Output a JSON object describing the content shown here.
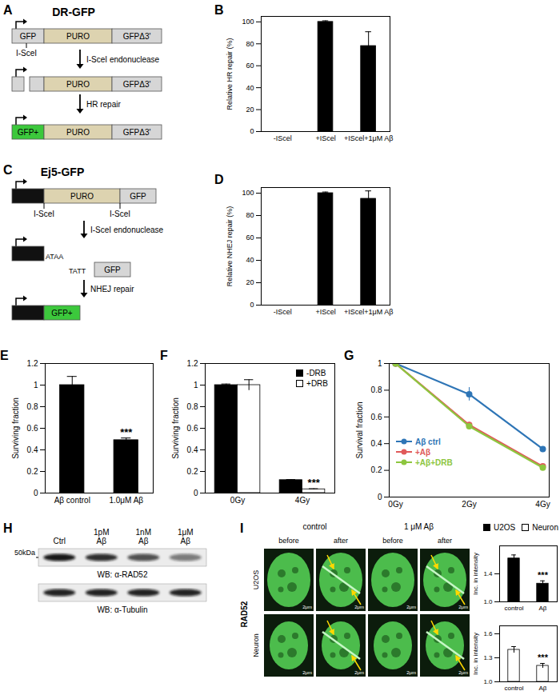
{
  "chart_data": [
    {
      "panel_label": "B",
      "type": "bar",
      "categories": [
        "-IScel",
        "+IScel",
        "+IScel+1μM Aβ"
      ],
      "values": [
        0,
        100,
        78
      ],
      "errors": [
        0,
        1,
        13
      ],
      "color": "#000000",
      "ylabel": "Relative HR repair (%)",
      "ylim": [
        0,
        105
      ],
      "yticks": [
        0,
        20,
        40,
        60,
        80,
        100
      ]
    },
    {
      "panel_label": "D",
      "type": "bar",
      "categories": [
        "-IScel",
        "+IScel",
        "+IScel+1μM Aβ"
      ],
      "values": [
        0,
        100,
        95
      ],
      "errors": [
        0,
        1,
        7
      ],
      "color": "#000000",
      "ylabel": "Relative NHEJ repair (%)",
      "ylim": [
        0,
        105
      ],
      "yticks": [
        0,
        20,
        40,
        60,
        80,
        100
      ]
    },
    {
      "panel_label": "E",
      "type": "bar",
      "categories": [
        "Aβ control",
        "1.0μM Aβ"
      ],
      "values": [
        1,
        0.49
      ],
      "errors": [
        0.08,
        0.02
      ],
      "color": "#000000",
      "ylabel": "Surviving fraction",
      "ylim": [
        0,
        1.2
      ],
      "yticks": [
        0,
        0.2,
        0.4,
        0.6,
        0.8,
        1,
        1.2
      ],
      "annotations": [
        {
          "text": "***",
          "category": "1.0μM Aβ"
        }
      ]
    },
    {
      "panel_label": "F",
      "type": "bar",
      "categories": [
        "0Gy",
        "4Gy"
      ],
      "series": [
        {
          "name": "-DRB",
          "color": "#000000",
          "values": [
            1,
            0.12
          ],
          "errors": [
            0.01,
            0.005
          ]
        },
        {
          "name": "+DRB",
          "color": "#ffffff",
          "values": [
            1,
            0.035
          ],
          "errors": [
            0.05,
            0.005
          ]
        }
      ],
      "ylabel": "Surviving fraction",
      "ylim": [
        0,
        1.2
      ],
      "yticks": [
        0,
        0.2,
        0.4,
        0.6,
        0.8,
        1,
        1.2
      ],
      "legend": "top-right",
      "annotations": [
        {
          "text": "***",
          "category": "4Gy",
          "series": "+DRB"
        }
      ]
    },
    {
      "panel_label": "G",
      "type": "line",
      "categories": [
        "0Gy",
        "2Gy",
        "4Gy"
      ],
      "series": [
        {
          "name": "Aβ ctrl",
          "color": "#2e75b6",
          "values": [
            1,
            0.77,
            0.36
          ],
          "errors": [
            0,
            0.05,
            0.01
          ]
        },
        {
          "name": "+Aβ",
          "color": "#e05a5a",
          "values": [
            1,
            0.54,
            0.23
          ],
          "errors": [
            0,
            0.02,
            0.01
          ]
        },
        {
          "name": "+Aβ+DRB",
          "color": "#8dc63f",
          "values": [
            1,
            0.53,
            0.22
          ],
          "errors": [
            0,
            0.02,
            0.01
          ]
        }
      ],
      "ylabel": "Survival fraction",
      "ylim": [
        0,
        1
      ],
      "yticks": [
        0,
        0.2,
        0.4,
        0.6,
        0.8,
        1
      ],
      "legend": "left",
      "marker": "circle"
    },
    {
      "type": "bar",
      "categories": [
        "control",
        "Aβ"
      ],
      "series": [
        {
          "name": "U2OS",
          "color": "#000000",
          "values": [
            1.62,
            1.26
          ],
          "errors": [
            0.05,
            0.04
          ]
        }
      ],
      "ylabel": "Inc. in intensity",
      "ylim": [
        1,
        1.8
      ],
      "yticks": [
        {
          "value": 1,
          "label": "1.0"
        },
        1.4
      ],
      "legend": "top-right",
      "annotations": [
        {
          "text": "***",
          "category": "Aβ",
          "series": "U2OS"
        }
      ]
    },
    {
      "type": "bar",
      "categories": [
        "control",
        "Aβ"
      ],
      "series": [
        {
          "name": "Neuron",
          "color": "#ffffff",
          "values": [
            1.4,
            1.2
          ],
          "errors": [
            0.04,
            0.03
          ]
        }
      ],
      "ylabel": "Inc. in intensity",
      "ylim": [
        1,
        1.7
      ],
      "yticks": [
        {
          "value": 1,
          "label": "1.0"
        },
        1.3,
        1.6
      ],
      "legend": "top-right",
      "annotations": [
        {
          "text": "***",
          "category": "Aβ",
          "series": "Neuron"
        }
      ]
    }
  ],
  "diagrams": {
    "A": {
      "panel_label": "A",
      "title": "DR-GFP",
      "boxes": [
        "GFP",
        "PURO",
        "GFPΔ3'"
      ],
      "site": "I-SceI",
      "step1": "I-SceI endonuclease",
      "step2": "HR repair",
      "repaired": "GFP+"
    },
    "C": {
      "panel_label": "C",
      "title": "Ej5-GFP",
      "puro": "PURO",
      "gfp": "GFP",
      "site": "I-SceI",
      "step1": "I-SceI endonuclease",
      "overhang_left": "ATAA",
      "overhang_right": "TATT",
      "step2": "NHEJ repair",
      "repaired": "GFP+"
    },
    "H": {
      "panel_label": "H",
      "lanes": [
        "Ctrl",
        "1pM Aβ",
        "1nM Aβ",
        "1μM Aβ"
      ],
      "size_label": "50kDa",
      "blots": [
        "WB: α-RAD52",
        "WB: α-Tubulin"
      ],
      "rad52_band_intensity": [
        0.95,
        0.85,
        0.7,
        0.5
      ],
      "tubulin_band_intensity": [
        0.9,
        0.9,
        0.9,
        0.9
      ]
    },
    "I": {
      "panel_label": "I",
      "conditions": [
        "control",
        "1 μM Aβ"
      ],
      "timepoints": [
        "before",
        "after"
      ],
      "stain": "RAD52",
      "cells": [
        "U2OS",
        "Neuron"
      ],
      "scale_bar": "2μm"
    }
  }
}
